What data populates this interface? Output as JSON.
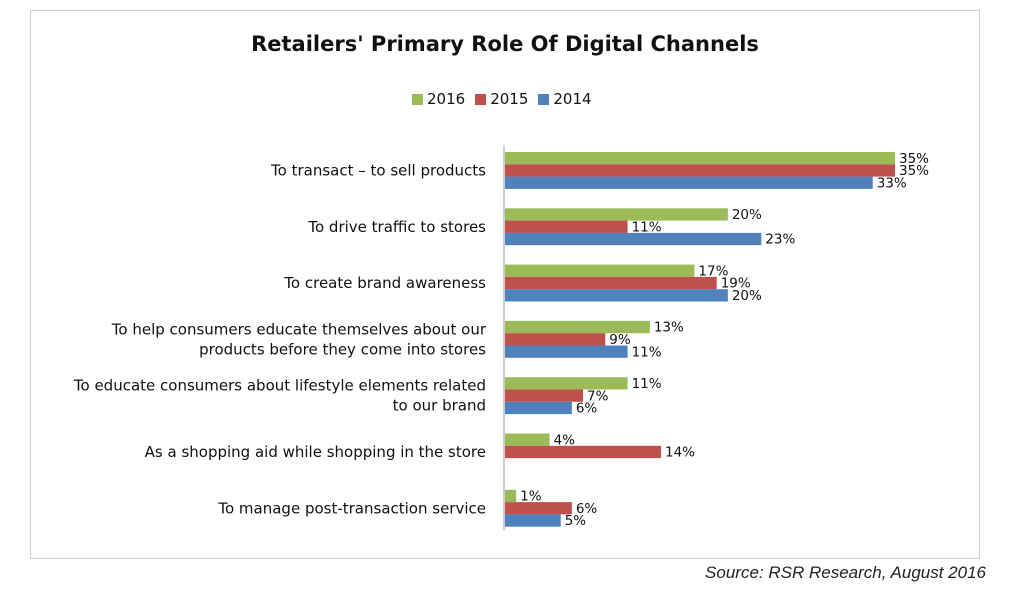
{
  "chart_data": {
    "type": "bar",
    "orientation": "horizontal",
    "title": "Retailers' Primary Role Of Digital Channels",
    "categories": [
      [
        "To transact – to sell products"
      ],
      [
        "To drive traffic to stores"
      ],
      [
        "To create brand awareness"
      ],
      [
        "To help consumers educate themselves about our",
        "products before they come into stores"
      ],
      [
        "To educate consumers about lifestyle elements related",
        "to our brand"
      ],
      [
        "As a shopping aid while shopping in the store"
      ],
      [
        "To manage post-transaction service"
      ]
    ],
    "series": [
      {
        "name": "2016",
        "color": "#9bbb59",
        "values": [
          35,
          20,
          17,
          13,
          11,
          4,
          1
        ],
        "labels": [
          "35%",
          "20%",
          "17%",
          "13%",
          "11%",
          "4%",
          "1%"
        ]
      },
      {
        "name": "2015",
        "color": "#c0504d",
        "values": [
          35,
          11,
          19,
          9,
          7,
          14,
          6
        ],
        "labels": [
          "35%",
          "11%",
          "19%",
          "9%",
          "7%",
          "14%",
          "6%"
        ]
      },
      {
        "name": "2014",
        "color": "#4f81bd",
        "values": [
          33,
          23,
          20,
          11,
          6,
          null,
          5
        ],
        "labels": [
          "33%",
          "23%",
          "20%",
          "11%",
          "6%",
          "",
          "5%"
        ]
      }
    ],
    "xlim": [
      0,
      35
    ],
    "grid": false,
    "legend_position": "top"
  },
  "source": "Source: RSR Research, August 2016"
}
